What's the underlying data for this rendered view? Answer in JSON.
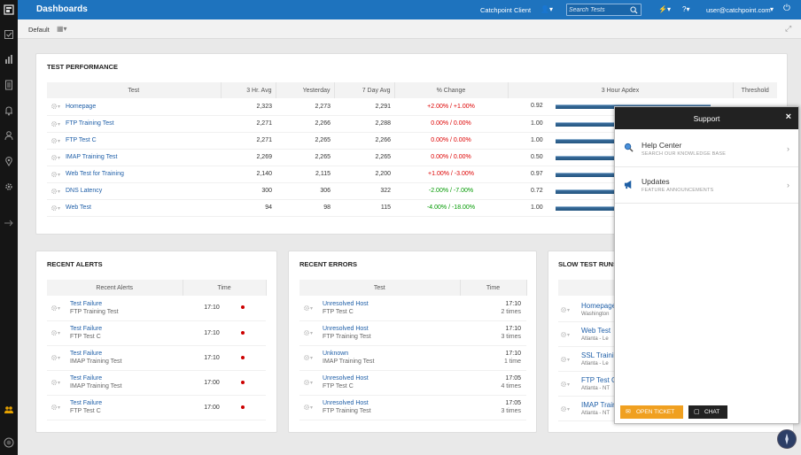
{
  "topbar": {
    "title": "Dashboards",
    "client": "Catchpoint Client",
    "search_placeholder": "Search Tests",
    "user": "user@catchpoint.com"
  },
  "subbar": {
    "view": "Default"
  },
  "performance": {
    "title": "TEST PERFORMANCE",
    "columns": [
      "Test",
      "3 Hr. Avg",
      "Yesterday",
      "7 Day Avg",
      "% Change",
      "3 Hour Apdex",
      "Threshold"
    ],
    "rows": [
      {
        "test": "Homepage",
        "hr3": "2,323",
        "yesterday": "2,273",
        "day7": "2,291",
        "change": "+2.00% / +1.00%",
        "cls": "red",
        "apdex": "0.92",
        "threshold": "",
        "apdex_fill": 0.92
      },
      {
        "test": "FTP Training Test",
        "hr3": "2,271",
        "yesterday": "2,266",
        "day7": "2,288",
        "change": "0.00% / 0.00%",
        "cls": "red",
        "apdex": "1.00",
        "threshold": "",
        "apdex_fill": 1.0
      },
      {
        "test": "FTP Test C",
        "hr3": "2,271",
        "yesterday": "2,265",
        "day7": "2,266",
        "change": "0.00% / 0.00%",
        "cls": "red",
        "apdex": "1.00",
        "threshold": "",
        "apdex_fill": 1.0
      },
      {
        "test": "IMAP Training Test",
        "hr3": "2,269",
        "yesterday": "2,265",
        "day7": "2,265",
        "change": "0.00% / 0.00%",
        "cls": "red",
        "apdex": "0.50",
        "threshold": "",
        "apdex_fill": 0.5
      },
      {
        "test": "Web Test for Training",
        "hr3": "2,140",
        "yesterday": "2,115",
        "day7": "2,200",
        "change": "+1.00% / -3.00%",
        "cls": "red",
        "apdex": "0.97",
        "threshold": "",
        "apdex_fill": 0.97
      },
      {
        "test": "DNS Latency",
        "hr3": "300",
        "yesterday": "306",
        "day7": "322",
        "change": "-2.00% / -7.00%",
        "cls": "green",
        "apdex": "0.72",
        "threshold": "",
        "apdex_fill": 0.72
      },
      {
        "test": "Web Test",
        "hr3": "94",
        "yesterday": "98",
        "day7": "115",
        "change": "-4.00% / -18.00%",
        "cls": "green",
        "apdex": "1.00",
        "threshold": "",
        "apdex_fill": 1.0
      }
    ]
  },
  "alerts": {
    "title": "RECENT ALERTS",
    "col_a": "Recent Alerts",
    "col_b": "Time",
    "rows": [
      {
        "name": "Test Failure",
        "test": "FTP Training Test",
        "time": "17:10"
      },
      {
        "name": "Test Failure",
        "test": "FTP Test C",
        "time": "17:10"
      },
      {
        "name": "Test Failure",
        "test": "IMAP Training Test",
        "time": "17:10"
      },
      {
        "name": "Test Failure",
        "test": "IMAP Training Test",
        "time": "17:00"
      },
      {
        "name": "Test Failure",
        "test": "FTP Test C",
        "time": "17:00"
      }
    ]
  },
  "errors": {
    "title": "RECENT ERRORS",
    "col_a": "Test",
    "col_b": "Time",
    "rows": [
      {
        "name": "Unresolved Host",
        "test": "FTP Test C",
        "time": "17:10",
        "count": "2 times"
      },
      {
        "name": "Unresolved Host",
        "test": "FTP Training Test",
        "time": "17:10",
        "count": "3 times"
      },
      {
        "name": "Unknown",
        "test": "IMAP Training Test",
        "time": "17:10",
        "count": "1 time"
      },
      {
        "name": "Unresolved Host",
        "test": "FTP Test C",
        "time": "17:05",
        "count": "4 times"
      },
      {
        "name": "Unresolved Host",
        "test": "FTP Training Test",
        "time": "17:05",
        "count": "3 times"
      }
    ]
  },
  "slow": {
    "title": "SLOW TEST RUNS",
    "rows": [
      {
        "name": "Homepage",
        "sub": "Washington"
      },
      {
        "name": "Web Test",
        "sub": "Atlanta - Le"
      },
      {
        "name": "SSL Trainin",
        "sub": "Atlanta - Le"
      },
      {
        "name": "FTP Test C",
        "sub": "Atlanta - NT"
      },
      {
        "name": "IMAP Train",
        "sub": "Atlanta - NT"
      }
    ]
  },
  "support": {
    "title": "Support",
    "close": "×",
    "items": [
      {
        "name": "Help Center",
        "desc": "SEARCH OUR KNOWLEDGE BASE"
      },
      {
        "name": "Updates",
        "desc": "FEATURE ANNOUNCEMENTS"
      }
    ],
    "open_ticket": "OPEN TICKET",
    "chat": "CHAT"
  },
  "colors": {
    "topbar": "#1e73be",
    "sidebar": "#151515",
    "ticket": "#f0a020",
    "chat": "#222222"
  }
}
